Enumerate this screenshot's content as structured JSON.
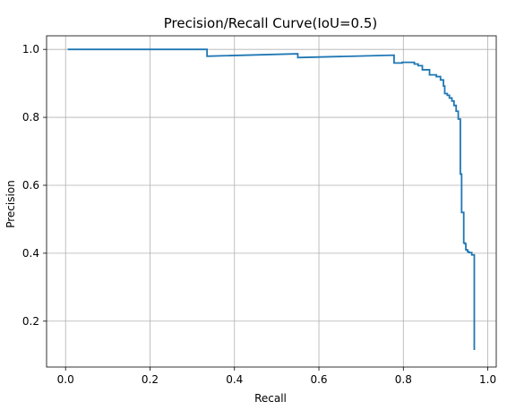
{
  "chart_data": {
    "type": "line",
    "title": "Precision/Recall Curve(IoU=0.5)",
    "xlabel": "Recall",
    "ylabel": "Precision",
    "xlim": [
      -0.045,
      1.02
    ],
    "ylim": [
      0.065,
      1.04
    ],
    "xticks": [
      0.0,
      0.2,
      0.4,
      0.6,
      0.8,
      1.0
    ],
    "xtick_labels": [
      "0.0",
      "0.2",
      "0.4",
      "0.6",
      "0.8",
      "1.0"
    ],
    "yticks": [
      0.2,
      0.4,
      0.6,
      0.8,
      1.0
    ],
    "ytick_labels": [
      "0.2",
      "0.4",
      "0.6",
      "0.8",
      "1.0"
    ],
    "grid": true,
    "line_color": "#1f77b4",
    "series": [
      {
        "name": "",
        "x": [
          0.005,
          0.335,
          0.335,
          0.55,
          0.55,
          0.778,
          0.778,
          0.797,
          0.797,
          0.826,
          0.826,
          0.835,
          0.835,
          0.845,
          0.845,
          0.862,
          0.862,
          0.878,
          0.878,
          0.888,
          0.888,
          0.895,
          0.895,
          0.898,
          0.898,
          0.904,
          0.904,
          0.909,
          0.909,
          0.915,
          0.915,
          0.92,
          0.92,
          0.925,
          0.925,
          0.93,
          0.93,
          0.935,
          0.935,
          0.938,
          0.938,
          0.943,
          0.943,
          0.946,
          0.946,
          0.948,
          0.948,
          0.952,
          0.952,
          0.955,
          0.955,
          0.962,
          0.962,
          0.968,
          0.968
        ],
        "y": [
          1.0,
          1.0,
          0.98,
          0.987,
          0.976,
          0.983,
          0.96,
          0.96,
          0.962,
          0.962,
          0.957,
          0.957,
          0.952,
          0.952,
          0.94,
          0.94,
          0.925,
          0.925,
          0.92,
          0.92,
          0.91,
          0.91,
          0.892,
          0.892,
          0.87,
          0.87,
          0.865,
          0.865,
          0.857,
          0.857,
          0.848,
          0.848,
          0.835,
          0.835,
          0.818,
          0.818,
          0.795,
          0.795,
          0.633,
          0.633,
          0.52,
          0.52,
          0.43,
          0.43,
          0.428,
          0.428,
          0.41,
          0.41,
          0.405,
          0.405,
          0.402,
          0.402,
          0.395,
          0.395,
          0.115
        ]
      }
    ]
  }
}
